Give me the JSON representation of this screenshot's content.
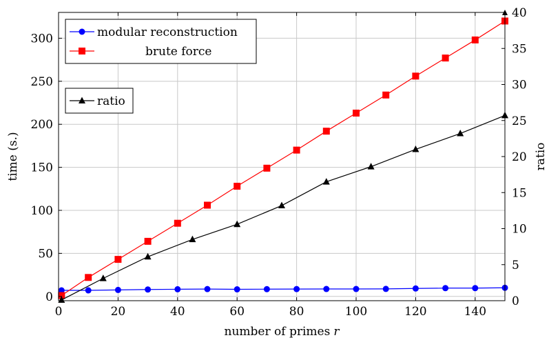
{
  "chart_data": {
    "type": "line",
    "xlabel": "number of primes",
    "xlabel_var": "r",
    "ylabel": "time (s.)",
    "y2label": "ratio",
    "xlim": [
      0,
      150
    ],
    "ylim": [
      -5,
      330
    ],
    "y2lim": [
      0,
      40
    ],
    "grid": true,
    "x_ticks": [
      0,
      20,
      40,
      60,
      80,
      100,
      120,
      140
    ],
    "y_ticks": [
      0,
      50,
      100,
      150,
      200,
      250,
      300
    ],
    "y2_ticks": [
      0,
      5,
      10,
      15,
      20,
      25,
      30,
      35,
      40
    ],
    "series": [
      {
        "name": "modular reconstruction",
        "axis": "left",
        "color": "#0000ff",
        "marker": "circle",
        "x": [
          1,
          10,
          20,
          30,
          40,
          50,
          60,
          70,
          80,
          90,
          100,
          110,
          120,
          130,
          140,
          150
        ],
        "y": [
          7,
          7,
          7.5,
          8,
          8.3,
          8.5,
          8.2,
          8.4,
          8.5,
          8.6,
          8.6,
          8.7,
          9.2,
          9.6,
          9.6,
          10
        ]
      },
      {
        "name": "brute force",
        "axis": "left",
        "color": "#ff0000",
        "marker": "square",
        "x": [
          1,
          10,
          20,
          30,
          40,
          50,
          60,
          70,
          80,
          90,
          100,
          110,
          120,
          130,
          140,
          150
        ],
        "y": [
          1,
          22,
          43,
          64,
          85,
          106,
          128,
          149,
          170,
          192,
          213,
          234,
          256,
          277,
          298,
          320
        ]
      },
      {
        "name": "ratio",
        "axis": "right",
        "color": "#000000",
        "marker": "triangle",
        "x": [
          1,
          15,
          30,
          45,
          60,
          75,
          90,
          105,
          120,
          135,
          150
        ],
        "y": [
          0.1,
          3.1,
          6.1,
          8.5,
          10.6,
          13.2,
          16.5,
          18.6,
          21,
          23.2,
          25.7
        ]
      }
    ],
    "legends": [
      {
        "entries": [
          "modular reconstruction",
          "brute force"
        ],
        "placement": "top-left"
      },
      {
        "entries": [
          "ratio"
        ],
        "placement": "upper-left"
      }
    ]
  }
}
